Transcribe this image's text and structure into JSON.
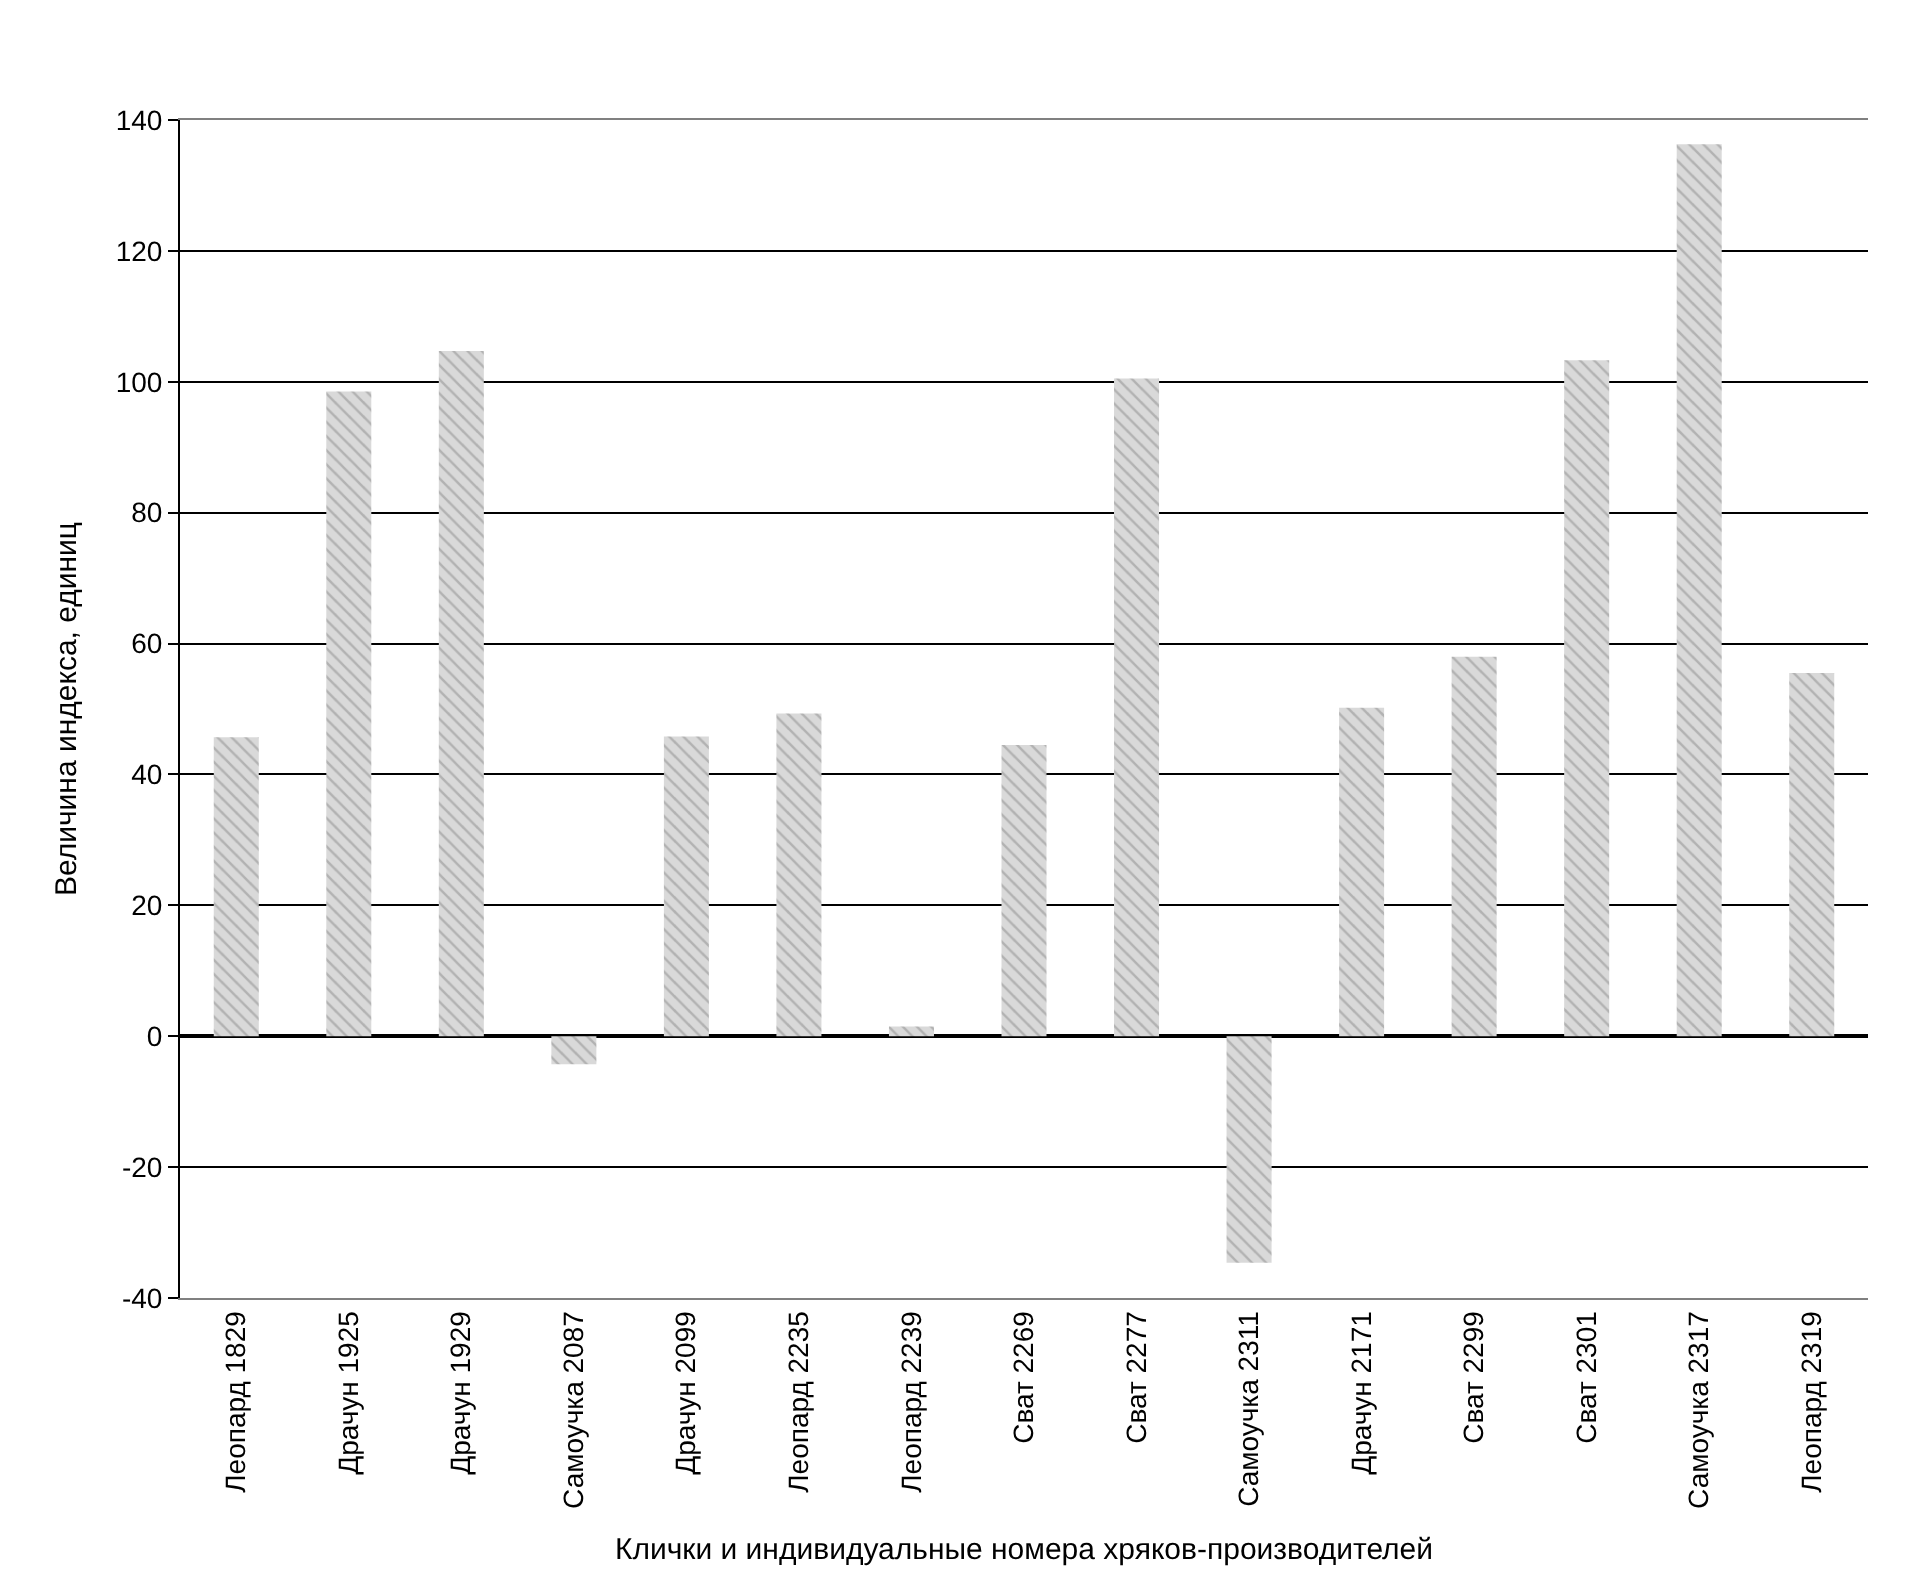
{
  "chart_data": {
    "type": "bar",
    "xlabel": "Клички и индивидуальные номера хряков-производителей",
    "ylabel": "Величина индекса, единиц",
    "categories": [
      "Леопард 1829",
      "Драчун 1925",
      "Драчун 1929",
      "Самоучка 2087",
      "Драчун 2099",
      "Леопард 2235",
      "Леопард 2239",
      "Сват 2269",
      "Сват 2277",
      "Самоучка 2311",
      "Драчун 2171",
      "Сват 2299",
      "Сват 2301",
      "Самоучка 2317",
      "Леопард 2319"
    ],
    "values": [
      45.7,
      98.5,
      104.7,
      -4.3,
      45.8,
      49.3,
      1.5,
      44.5,
      100.5,
      -34.6,
      50.2,
      58.0,
      103.3,
      136.3,
      55.5
    ],
    "color": "#d9d9d9",
    "ylim": [
      -40,
      140
    ],
    "yticks": [
      -40,
      -20,
      0,
      20,
      40,
      60,
      80,
      100,
      120,
      140
    ],
    "grid": "y",
    "legend": false
  }
}
